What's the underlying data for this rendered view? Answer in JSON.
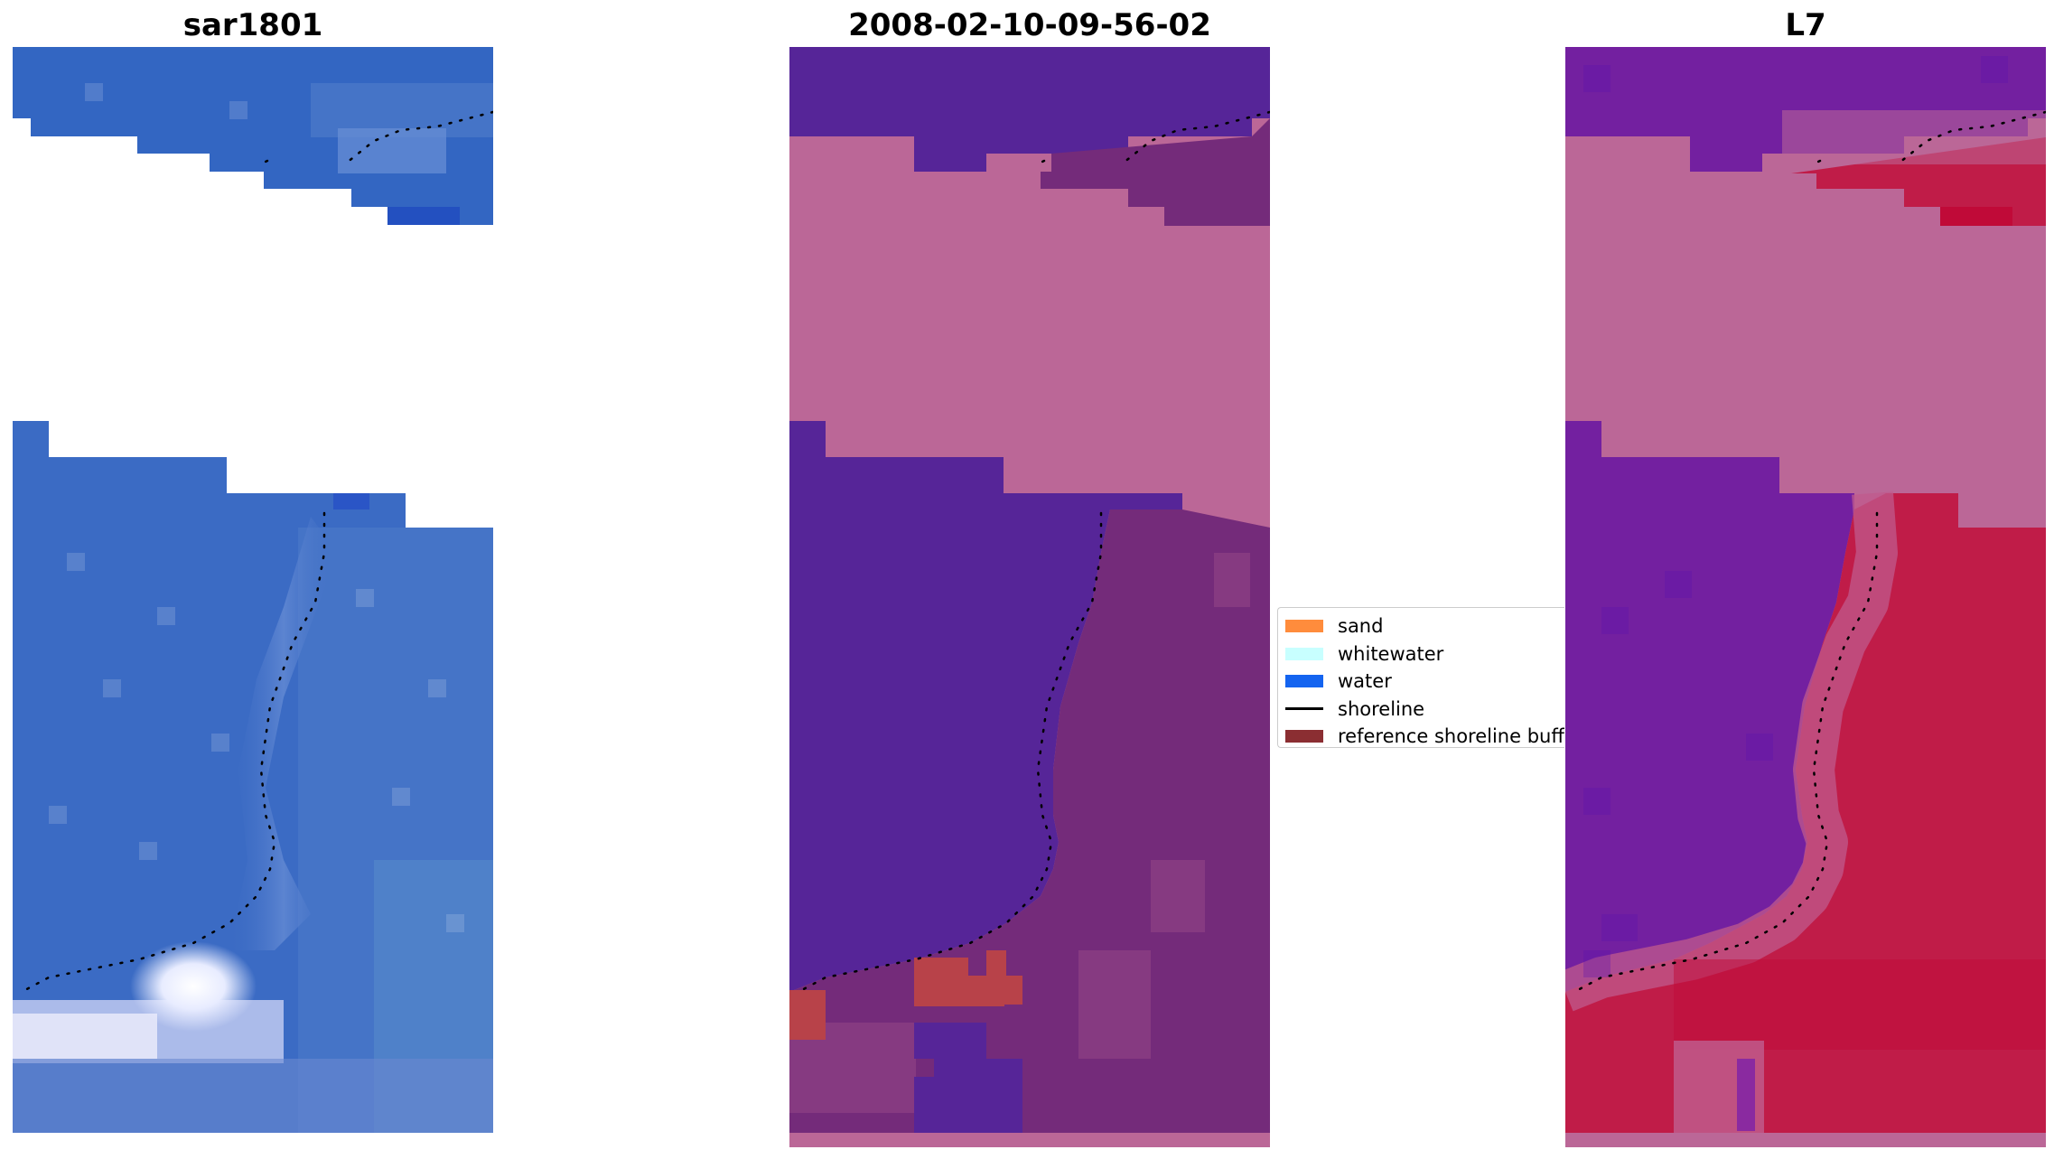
{
  "panels": {
    "left_title": "sar1801",
    "middle_title": "2008-02-10-09-56-02",
    "right_title": "L7"
  },
  "legend": {
    "items": [
      {
        "label": "sand",
        "color": "#ff8c3c",
        "kind": "patch"
      },
      {
        "label": "whitewater",
        "color": "#c8ffff",
        "kind": "patch"
      },
      {
        "label": "water",
        "color": "#1464f0",
        "kind": "patch"
      },
      {
        "label": "shoreline",
        "color": "#000000",
        "kind": "line"
      },
      {
        "label": "reference shoreline buff",
        "color": "#8b2e32",
        "kind": "patch"
      }
    ]
  },
  "colors": {
    "rgb_water": "#3a6bc4",
    "rgb_light": "#7090d0",
    "rgb_white": "#f4f4ff",
    "class_water": "#562598",
    "class_nodata": "#bb6797",
    "class_buffer": "#742b7a",
    "class_sand": "#b84249",
    "mndwi_purple": "#7320a0",
    "mndwi_red": "#c01c48",
    "shoreline": "#000000"
  }
}
